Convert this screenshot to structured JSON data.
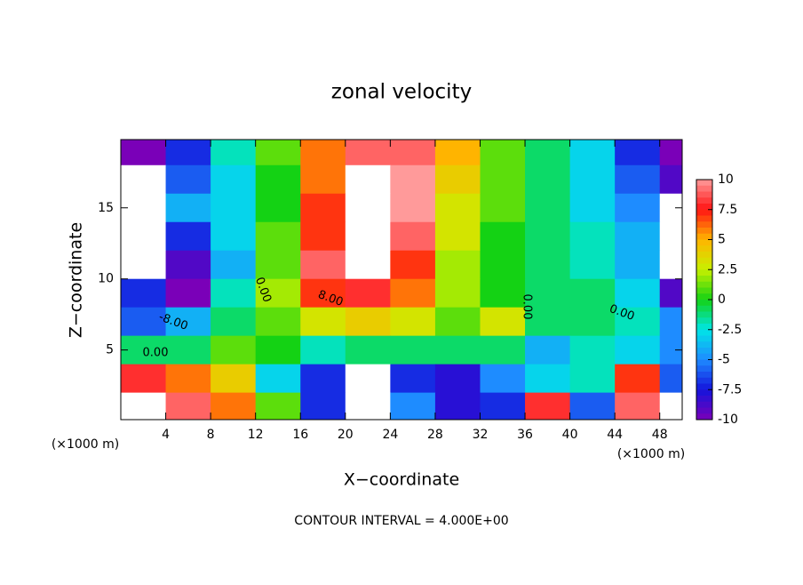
{
  "chart_data": {
    "type": "contour",
    "title": "zonal velocity",
    "x_label": "X−coordinate",
    "y_label": "Z−coordinate",
    "x_unit": "(×1000 m)",
    "footer": "CONTOUR INTERVAL = 4.000E+00",
    "x": [
      2,
      6,
      10,
      14,
      18,
      22,
      26,
      30,
      34,
      38,
      42,
      46,
      50
    ],
    "z": [
      19,
      17,
      15,
      13,
      11,
      9,
      7,
      5,
      3,
      1
    ],
    "values": [
      [
        -10,
        -7,
        -2,
        1,
        6,
        9,
        9,
        5,
        1,
        -1,
        -3,
        -7,
        -10
      ],
      [
        12,
        -6,
        -3,
        0,
        6,
        12,
        10,
        4,
        1,
        -1,
        -3,
        -6,
        -9
      ],
      [
        12,
        -4,
        -3,
        0,
        7,
        14,
        10,
        3,
        1,
        -1,
        -3,
        -5,
        12
      ],
      [
        12,
        -7,
        -3,
        1,
        7,
        14,
        9,
        3,
        0,
        -1,
        -2,
        -4,
        12
      ],
      [
        12,
        -9,
        -4,
        1,
        9,
        12,
        7,
        2,
        0,
        -1,
        -2,
        -4,
        12
      ],
      [
        -7,
        -10,
        -2,
        2,
        7,
        8,
        6,
        2,
        0,
        -1,
        -1,
        -3,
        -9
      ],
      [
        -6,
        -4,
        -1,
        1,
        3,
        4,
        3,
        1,
        3,
        -1,
        -1,
        -2,
        -5
      ],
      [
        -1,
        -1,
        1,
        0,
        -2,
        -1,
        -1,
        -1,
        -1,
        -4,
        -2,
        -3,
        -5
      ],
      [
        8,
        6,
        4,
        -3,
        -7,
        12,
        -7,
        -8,
        -5,
        -3,
        -2,
        7,
        -6
      ],
      [
        12,
        9,
        6,
        1,
        -7,
        12,
        -5,
        -8,
        -7,
        8,
        -6,
        9,
        12
      ]
    ],
    "xlim": [
      0,
      50
    ],
    "xticks": [
      4,
      8,
      12,
      16,
      20,
      24,
      28,
      32,
      36,
      40,
      44,
      48
    ],
    "ylim": [
      0.1,
      19.8
    ],
    "yticks": [
      5,
      10,
      15
    ],
    "clim": [
      -10,
      10
    ],
    "cticks": [
      10,
      7.5,
      5,
      2.5,
      0,
      -2.5,
      -5,
      -7.5,
      -10
    ],
    "colorscale": [
      "#7a00b8",
      "#1414dc",
      "#1e8cff",
      "#00e6e6",
      "#14d214",
      "#c8f000",
      "#ffb400",
      "#ff1414",
      "#ff9a9a"
    ],
    "over_color": "#ffffff",
    "contour_labels": [
      "0.00",
      "-8.00",
      "0.00",
      "8.00",
      "0.00",
      "0.00"
    ]
  }
}
